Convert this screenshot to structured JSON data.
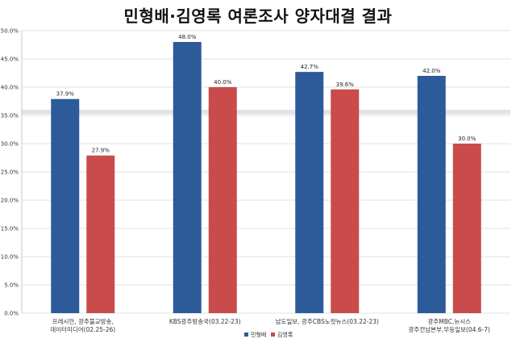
{
  "chart_data": {
    "type": "bar",
    "title": "민형배·김영록 여론조사 양자대결 결과",
    "categories": [
      [
        "프레시안, 광주불교방송,",
        "데이터미디어(02.25-26)"
      ],
      [
        "KBS광주방송국(03.22-23)"
      ],
      [
        "남도일보, 광주CBS노컷뉴스(03.22-23)"
      ],
      [
        "광주MBC,뉴시스",
        "광주전남본부,무등일보(04.6-7)"
      ]
    ],
    "series": [
      {
        "name": "민형배",
        "color": "#2d5b9a",
        "values": [
          37.9,
          48.0,
          42.7,
          42.0
        ]
      },
      {
        "name": "김영록",
        "color": "#c94b4b",
        "values": [
          27.9,
          40.0,
          39.6,
          30.0
        ]
      }
    ],
    "ylim": [
      0,
      50
    ],
    "yticks": [
      "0.0%",
      "5.0%",
      "10.0%",
      "15.0%",
      "20.0%",
      "25.0%",
      "30.0%",
      "35.0%",
      "40.0%",
      "45.0%",
      "50.0%"
    ],
    "grid": true,
    "legend_position": "bottom"
  }
}
